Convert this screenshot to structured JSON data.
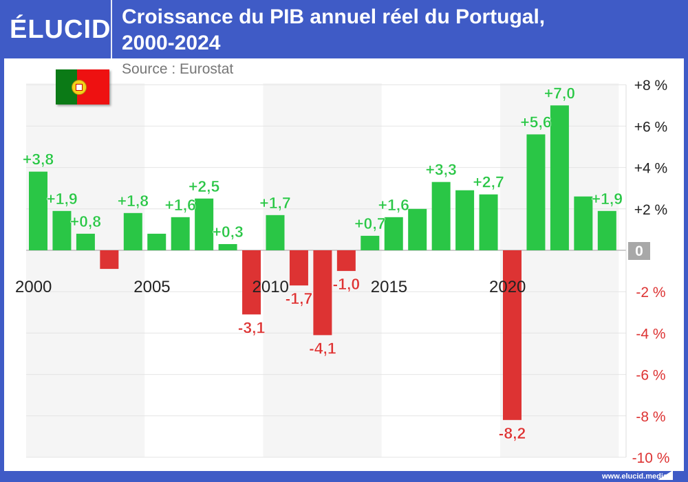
{
  "header": {
    "logo": "ÉLUCID",
    "title_line1": "Croissance du PIB annuel réel du Portugal,",
    "title_line2": "2000-2024",
    "source": "Source : Eurostat",
    "footer": "www.elucid.media"
  },
  "colors": {
    "frame": "#3f5bc6",
    "positive": "#2ac646",
    "negative": "#dd3333",
    "positive_label": "#2ac646",
    "negative_label": "#dd3333"
  },
  "chart_data": {
    "type": "bar",
    "title": "Croissance du PIB annuel réel du Portugal, 2000-2024",
    "categories": [
      "2000",
      "2001",
      "2002",
      "2003",
      "2004",
      "2005",
      "2006",
      "2007",
      "2008",
      "2009",
      "2010",
      "2011",
      "2012",
      "2013",
      "2014",
      "2015",
      "2016",
      "2017",
      "2018",
      "2019",
      "2020",
      "2021",
      "2022",
      "2023",
      "2024"
    ],
    "values": [
      3.8,
      1.9,
      0.8,
      -0.9,
      1.8,
      0.8,
      1.6,
      2.5,
      0.3,
      -3.1,
      1.7,
      -1.7,
      -4.1,
      -1.0,
      0.7,
      1.6,
      2.0,
      3.3,
      2.9,
      2.7,
      -8.2,
      5.6,
      7.0,
      2.6,
      1.9
    ],
    "data_labels": {
      "2000": "+3,8",
      "2001": "+1,9",
      "2002": "+0,8",
      "2004": "+1,8",
      "2006": "+1,6",
      "2007": "+2,5",
      "2008": "+0,3",
      "2009": "-3,1",
      "2010": "+1,7",
      "2011": "-1,7",
      "2012": "-4,1",
      "2013": "-1,0",
      "2014": "+0,7",
      "2015": "+1,6",
      "2017": "+3,3",
      "2019": "+2,7",
      "2020": "-8,2",
      "2021": "+5,6",
      "2022": "+7,0",
      "2024": "+1,9"
    },
    "x_tick_labels": [
      "2000",
      "2005",
      "2010",
      "2015",
      "2020"
    ],
    "y_ticks": [
      {
        "v": 8,
        "label": "+8 %"
      },
      {
        "v": 6,
        "label": "+6 %"
      },
      {
        "v": 4,
        "label": "+4 %"
      },
      {
        "v": 2,
        "label": "+2 %"
      },
      {
        "v": 0,
        "label": "0"
      },
      {
        "v": -2,
        "label": "-2 %"
      },
      {
        "v": -4,
        "label": "-4 %"
      },
      {
        "v": -6,
        "label": "-6 %"
      },
      {
        "v": -8,
        "label": "-8 %"
      },
      {
        "v": -10,
        "label": "-10 %"
      }
    ],
    "ylim": [
      -10,
      8
    ],
    "grid": true,
    "y_axis_position": "right"
  }
}
